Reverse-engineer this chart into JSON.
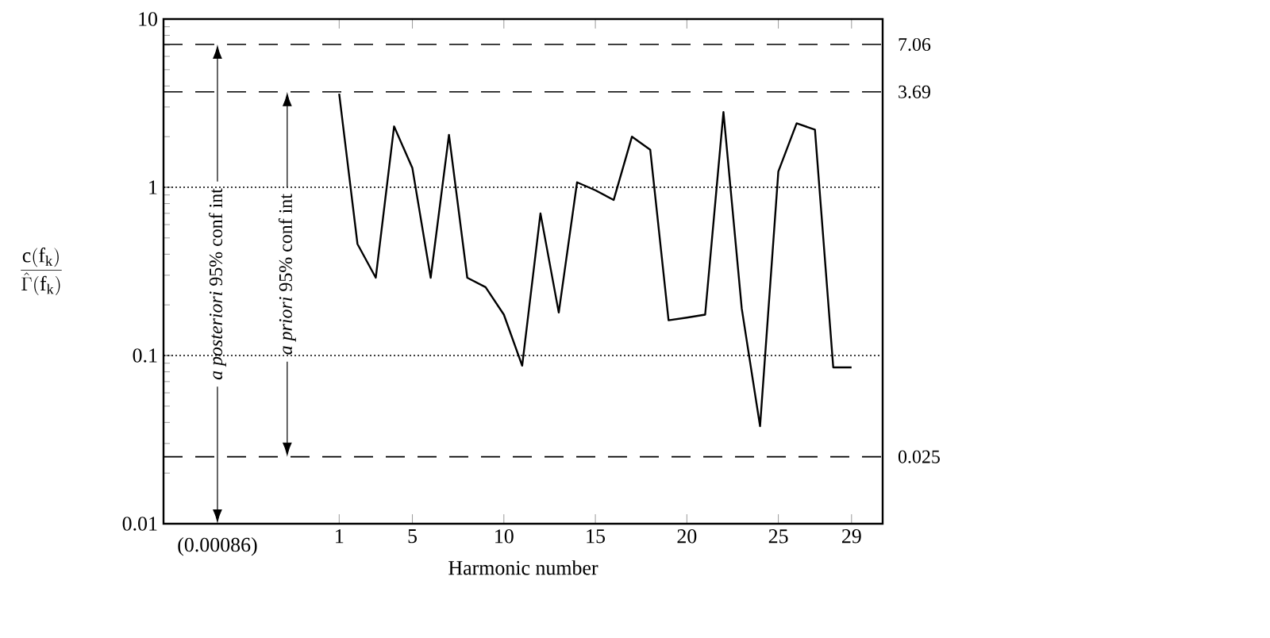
{
  "chart_data": {
    "type": "line",
    "xlabel": "Harmonic number",
    "ylabel": "\\frac{\\mathrm{c(f_k)}}{\\hat{\\Gamma}\\mathrm{(f_k)}}",
    "x": [
      1,
      2,
      3,
      4,
      5,
      6,
      7,
      8,
      9,
      10,
      11,
      12,
      13,
      14,
      15,
      16,
      17,
      18,
      19,
      20,
      21,
      22,
      23,
      24,
      25,
      26,
      27,
      28,
      29
    ],
    "series": [
      {
        "color": "#000000",
        "values": [
          3.6,
          0.46,
          0.29,
          2.3,
          1.3,
          0.29,
          2.05,
          0.29,
          0.255,
          0.175,
          0.087,
          0.7,
          0.18,
          1.07,
          0.96,
          0.84,
          2.0,
          1.67,
          0.162,
          0.168,
          0.175,
          2.8,
          0.19,
          0.038,
          1.24,
          2.4,
          2.2,
          0.085,
          0.085
        ]
      }
    ],
    "log": "y",
    "marker": "none",
    "line_style": "solid",
    "xlim": [
      -8.6,
      30.7
    ],
    "xticks": [
      1,
      5,
      10,
      15,
      20,
      25,
      29
    ],
    "ylim": [
      0.01,
      10
    ],
    "yticks": [
      0.01,
      0.1,
      1,
      10
    ],
    "ref_lines": [
      {
        "axis": "y",
        "value": 7.06,
        "label": "7.06",
        "line_style": "dashed"
      },
      {
        "axis": "y",
        "value": 3.69,
        "label": "3.69",
        "line_style": "dashed"
      },
      {
        "axis": "y",
        "value": 0.025,
        "label": "0.025",
        "line_style": "dashed"
      },
      {
        "axis": "y",
        "value": 1,
        "line_style": "dotted"
      },
      {
        "axis": "y",
        "value": 0.1,
        "line_style": "dotted"
      }
    ],
    "annotations": [
      "*a posteriori* 95% conf int",
      "*a priori* 95% conf int",
      "(0.00086)"
    ]
  }
}
